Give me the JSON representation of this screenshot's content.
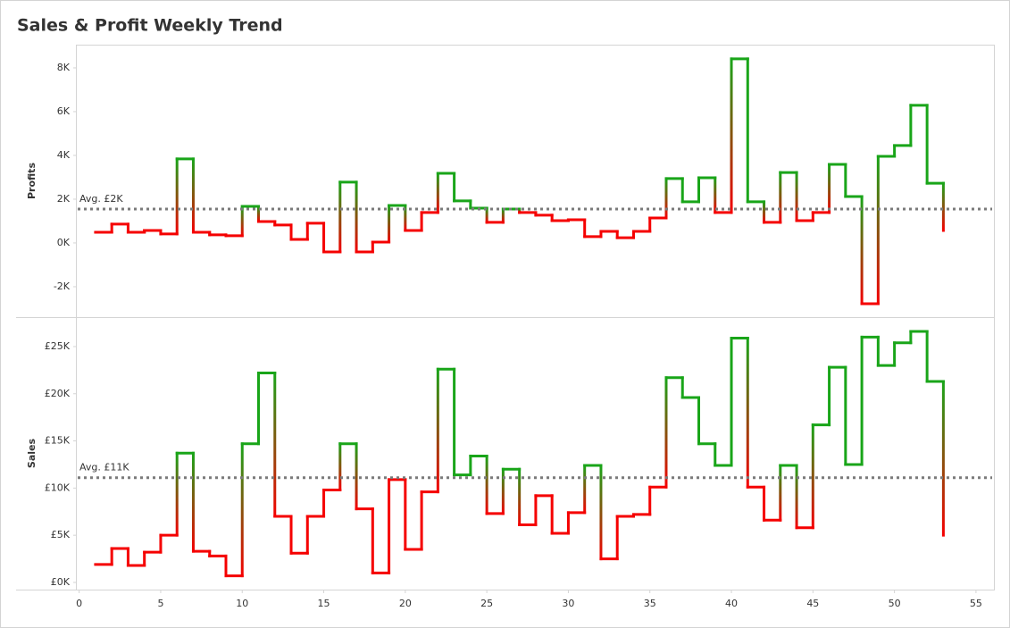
{
  "title": "Sales & Profit Weekly Trend",
  "chart_data": [
    {
      "type": "step",
      "y_label": "Profits",
      "x": [
        1,
        2,
        3,
        4,
        5,
        6,
        7,
        8,
        9,
        10,
        11,
        12,
        13,
        14,
        15,
        16,
        17,
        18,
        19,
        20,
        21,
        22,
        23,
        24,
        25,
        26,
        27,
        28,
        29,
        30,
        31,
        32,
        33,
        34,
        35,
        36,
        37,
        38,
        39,
        40,
        41,
        42,
        43,
        44,
        45,
        46,
        47,
        48,
        49,
        50,
        51,
        52,
        53
      ],
      "values": [
        490,
        860,
        490,
        570,
        410,
        3840,
        490,
        370,
        330,
        1670,
        980,
        820,
        160,
        900,
        -410,
        2780,
        -410,
        40,
        1710,
        570,
        1390,
        3180,
        1920,
        1590,
        940,
        1550,
        1390,
        1270,
        1020,
        1060,
        290,
        530,
        240,
        530,
        1140,
        2940,
        1880,
        2980,
        1390,
        8410,
        1880,
        940,
        3220,
        1020,
        1390,
        3590,
        2120,
        -2780,
        3960,
        4450,
        6290,
        2730,
        570
      ],
      "xlim": [
        -0.2,
        56.1
      ],
      "ylim": [
        -3390,
        9060
      ],
      "yticks": [
        {
          "value": -2000,
          "label": "-2K"
        },
        {
          "value": 0,
          "label": "0K"
        },
        {
          "value": 2000,
          "label": "2K"
        },
        {
          "value": 4000,
          "label": "4K"
        },
        {
          "value": 6000,
          "label": "6K"
        },
        {
          "value": 8000,
          "label": "8K"
        }
      ],
      "reference_line": {
        "value": 1550,
        "label": "Avg. £2K"
      },
      "colors": {
        "above": "#19a519",
        "below": "#f50000"
      }
    },
    {
      "type": "step",
      "y_label": "Sales",
      "x": [
        1,
        2,
        3,
        4,
        5,
        6,
        7,
        8,
        9,
        10,
        11,
        12,
        13,
        14,
        15,
        16,
        17,
        18,
        19,
        20,
        21,
        22,
        23,
        24,
        25,
        26,
        27,
        28,
        29,
        30,
        31,
        32,
        33,
        34,
        35,
        36,
        37,
        38,
        39,
        40,
        41,
        42,
        43,
        44,
        45,
        46,
        47,
        48,
        49,
        50,
        51,
        52,
        53
      ],
      "values": [
        1900,
        3600,
        1800,
        3200,
        5000,
        13700,
        3300,
        2800,
        700,
        14700,
        22200,
        7000,
        3100,
        7000,
        9800,
        14700,
        7800,
        1000,
        10900,
        3500,
        9600,
        22600,
        11400,
        13400,
        7300,
        12000,
        6100,
        9200,
        5200,
        7400,
        12400,
        2500,
        7000,
        7200,
        10100,
        21700,
        19600,
        14700,
        12400,
        25900,
        10100,
        6600,
        12400,
        5800,
        16700,
        22800,
        12500,
        26000,
        23000,
        25400,
        26600,
        21300,
        5000
      ],
      "xlim": [
        -0.2,
        56.1
      ],
      "ylim": [
        -760,
        28120
      ],
      "yticks": [
        {
          "value": 0,
          "label": "£0K"
        },
        {
          "value": 5000,
          "label": "£5K"
        },
        {
          "value": 10000,
          "label": "£10K"
        },
        {
          "value": 15000,
          "label": "£15K"
        },
        {
          "value": 20000,
          "label": "£20K"
        },
        {
          "value": 25000,
          "label": "£25K"
        }
      ],
      "xticks": [
        0,
        5,
        10,
        15,
        20,
        25,
        30,
        35,
        40,
        45,
        50,
        55
      ],
      "reference_line": {
        "value": 11100,
        "label": "Avg. £11K"
      },
      "colors": {
        "above": "#19a519",
        "below": "#f50000"
      }
    }
  ]
}
